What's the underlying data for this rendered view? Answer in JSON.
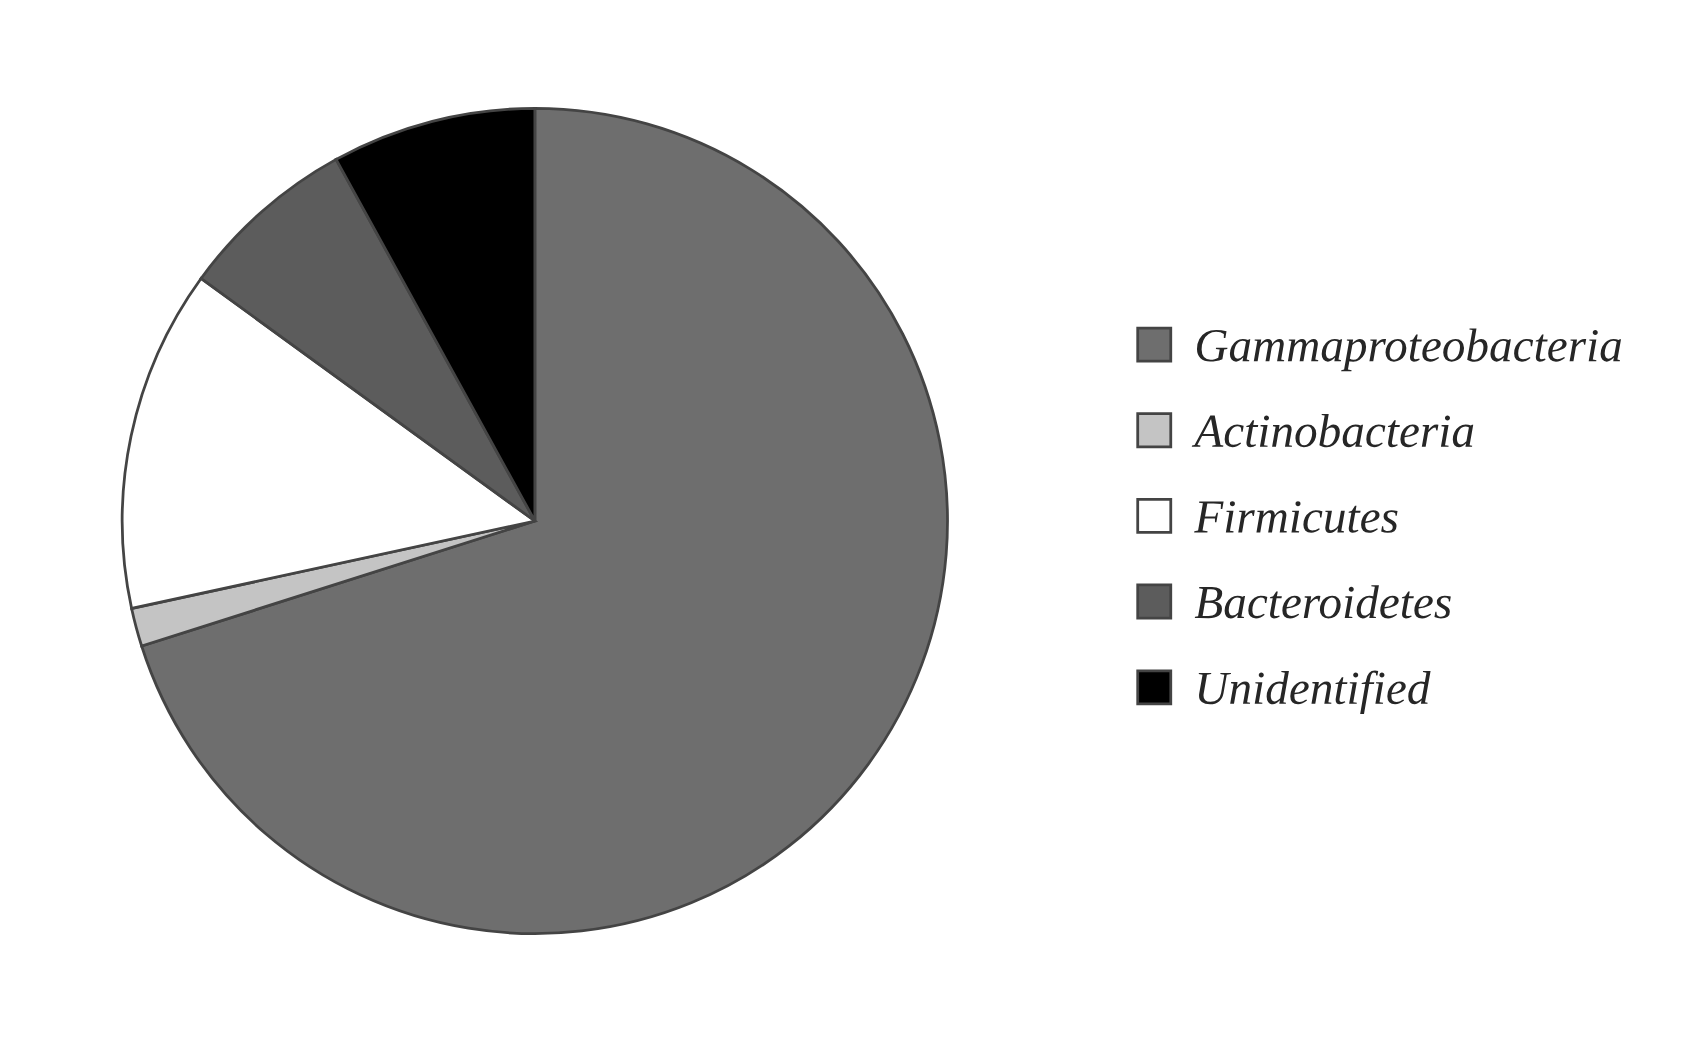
{
  "chart_data": {
    "type": "pie",
    "categories": [
      "Gammaproteobacteria",
      "Actinobacteria",
      "Firmicutes",
      "Bacteroidetes",
      "Unidentified"
    ],
    "values": [
      70.1,
      1.5,
      13.4,
      7.0,
      8.0
    ],
    "colors": [
      "#6e6e6e",
      "#c4c4c4",
      "#ffffff",
      "#5c5c5c",
      "#000000"
    ],
    "legend": "right"
  }
}
